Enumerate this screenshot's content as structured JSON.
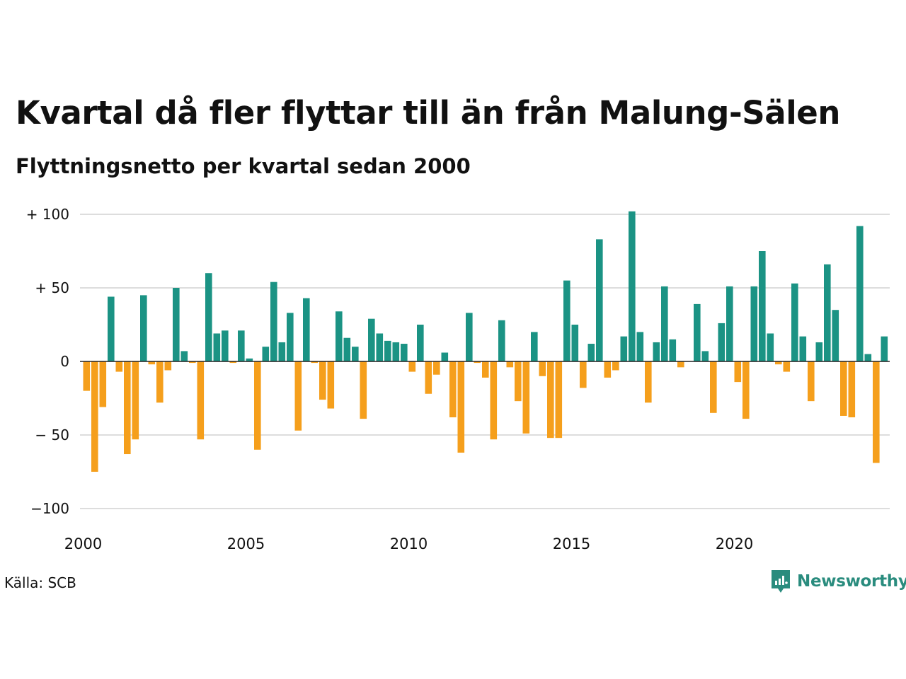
{
  "title": "Kvartal då fler flyttar till än från Malung-Sälen",
  "subtitle": "Flyttningsnetto per kvartal sedan 2000",
  "source": "Källa: SCB",
  "logo": {
    "text": "Newsworthy",
    "icon": "bar-chart-speech-bubble-icon"
  },
  "colors": {
    "positive": "#1b9384",
    "negative": "#f59f1c",
    "grid": "#dddddd",
    "zero_line": "#222222",
    "logo": "#2a8c7e"
  },
  "chart_data": {
    "type": "bar",
    "title": "Kvartal då fler flyttar till än från Malung-Sälen",
    "subtitle": "Flyttningsnetto per kvartal sedan 2000",
    "x_start": "2000 Q1",
    "x_ticks": [
      "2000",
      "2005",
      "2010",
      "2015",
      "2020"
    ],
    "y_ticks": [
      {
        "value": 100,
        "label": "+ 100"
      },
      {
        "value": 50,
        "label": "+  50"
      },
      {
        "value": 0,
        "label": "0"
      },
      {
        "value": -50,
        "label": "− 50"
      },
      {
        "value": -100,
        "label": "−100"
      }
    ],
    "ylim": [
      -100,
      100
    ],
    "grid": true,
    "legend": "none",
    "values": [
      -20,
      -75,
      -31,
      44,
      -7,
      -63,
      -53,
      45,
      -2,
      -28,
      -6,
      50,
      7,
      -1,
      -53,
      60,
      19,
      21,
      -1,
      21,
      2,
      -60,
      10,
      54,
      13,
      33,
      -47,
      43,
      -1,
      -26,
      -32,
      34,
      16,
      10,
      -39,
      29,
      19,
      14,
      13,
      12,
      -7,
      25,
      -22,
      -9,
      6,
      -38,
      -62,
      33,
      -1,
      -11,
      -53,
      28,
      -4,
      -27,
      -49,
      20,
      -10,
      -52,
      -52,
      55,
      25,
      -18,
      12,
      83,
      -11,
      -6,
      17,
      102,
      20,
      -28,
      13,
      51,
      15,
      -4,
      0,
      39,
      7,
      -35,
      26,
      51,
      -14,
      -39,
      51,
      75,
      19,
      -2,
      -7,
      53,
      17,
      -27,
      13,
      66,
      35,
      -37,
      -38,
      92,
      5,
      -69,
      17
    ]
  }
}
